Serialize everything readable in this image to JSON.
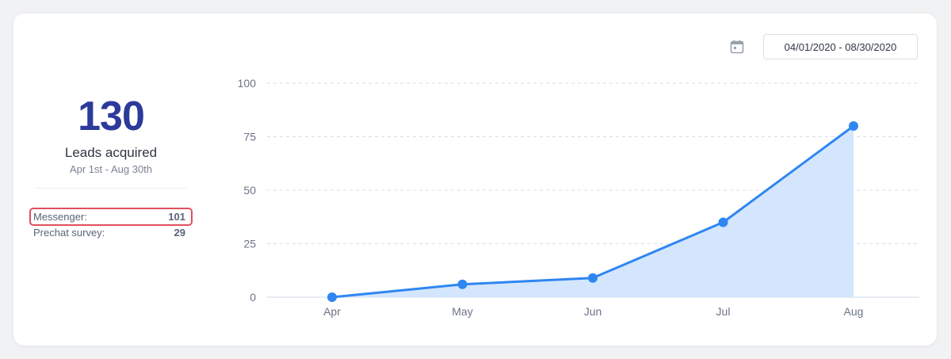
{
  "summary": {
    "total": "130",
    "label": "Leads acquired",
    "range": "Apr 1st - Aug 30th",
    "breakdown": [
      {
        "label": "Messenger:",
        "value": "101",
        "highlighted": true
      },
      {
        "label": "Prechat survey:",
        "value": "29",
        "highlighted": false
      }
    ]
  },
  "date_filter": {
    "value": "04/01/2020 - 08/30/2020",
    "icon": "calendar-icon"
  },
  "colors": {
    "line": "#2f86f2",
    "area": "#d4e6fd",
    "total": "#2b3a9b",
    "highlight_border": "#e0505e"
  },
  "chart_data": {
    "type": "area",
    "categories": [
      "Apr",
      "May",
      "Jun",
      "Jul",
      "Aug"
    ],
    "values": [
      0,
      6,
      9,
      35,
      80
    ],
    "yticks": [
      0,
      25,
      50,
      75,
      100
    ],
    "ylim": [
      0,
      100
    ],
    "grid": true,
    "title": "",
    "xlabel": "",
    "ylabel": ""
  }
}
